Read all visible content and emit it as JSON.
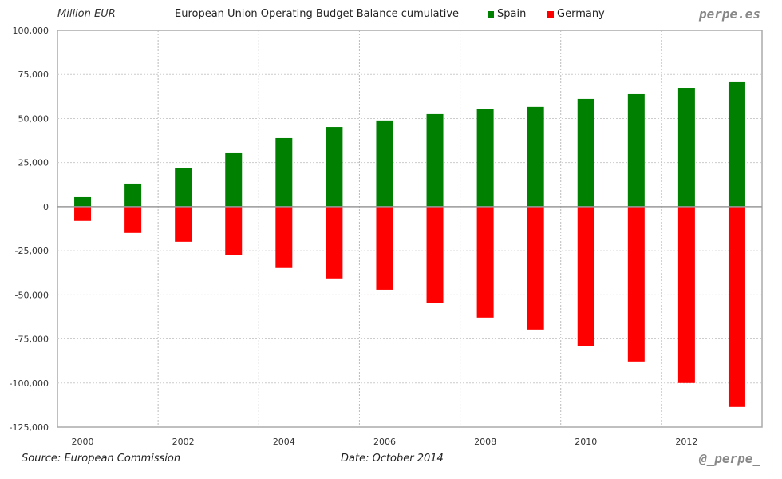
{
  "header": {
    "unit_label": "Million EUR",
    "title": "European Union Operating Budget Balance cumulative",
    "brand": "perpe.es"
  },
  "footer": {
    "source": "Source: European Commission",
    "date": "Date: October 2014",
    "handle": "@_perpe_"
  },
  "chart_data": {
    "type": "bar",
    "title": "European Union Operating Budget Balance cumulative",
    "xlabel": "",
    "ylabel": "Million EUR",
    "categories": [
      "2000",
      "2001",
      "2002",
      "2003",
      "2004",
      "2005",
      "2006",
      "2007",
      "2008",
      "2009",
      "2010",
      "2011",
      "2012",
      "2013"
    ],
    "x_tick_labels": [
      "2000",
      "2002",
      "2004",
      "2006",
      "2008",
      "2010",
      "2012"
    ],
    "series": [
      {
        "name": "Spain",
        "color": "#008000",
        "values": [
          5400,
          13100,
          21700,
          30300,
          38900,
          45200,
          48900,
          52500,
          55200,
          56600,
          61100,
          63800,
          67400,
          70600
        ]
      },
      {
        "name": "Germany",
        "color": "#ff0000",
        "values": [
          -8100,
          -14900,
          -19900,
          -27600,
          -34800,
          -40700,
          -47100,
          -54800,
          -62900,
          -69700,
          -79200,
          -87800,
          -100000,
          -113600
        ]
      }
    ],
    "ylim": [
      -125000,
      100000
    ],
    "y_ticks": [
      100000,
      75000,
      50000,
      25000,
      0,
      -25000,
      -50000,
      -75000,
      -100000,
      -125000
    ],
    "y_tick_labels": [
      "100,000",
      "75,000",
      "50,000",
      "25,000",
      "0",
      "-25,000",
      "-50,000",
      "-75,000",
      "-100,000",
      "-125,000"
    ],
    "grid": true,
    "legend_position": "top"
  }
}
